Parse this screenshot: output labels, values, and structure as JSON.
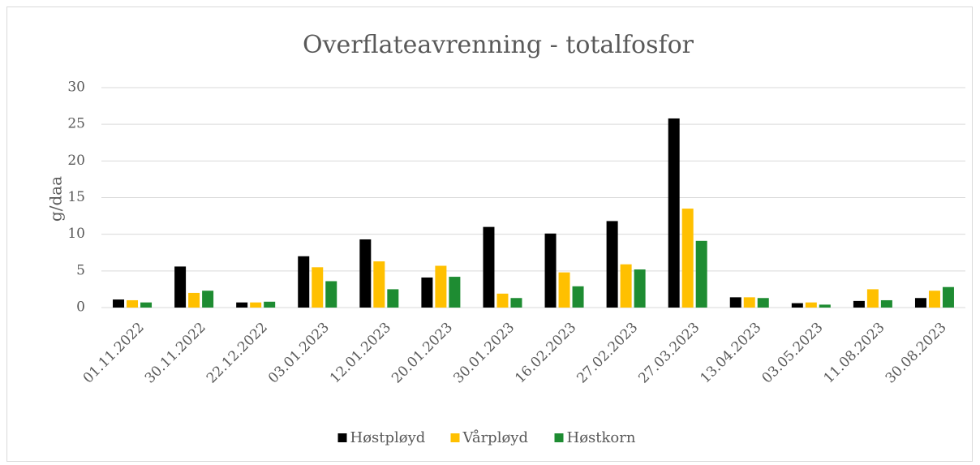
{
  "chart_data": {
    "type": "bar",
    "title": "Overflateavrenning - totalfosfor",
    "y_label": "g/daa",
    "categories": [
      "01.11.2022",
      "30.11.2022",
      "22.12.2022",
      "03.01.2023",
      "12.01.2023",
      "20.01.2023",
      "30.01.2023",
      "16.02.2023",
      "27.02.2023",
      "27.03.2023",
      "13.04.2023",
      "03.05.2023",
      "11.08.2023",
      "30.08.2023"
    ],
    "series": [
      {
        "name": "Høstpløyd",
        "color": "#000000",
        "values": [
          1.1,
          5.6,
          0.7,
          7.0,
          9.3,
          4.1,
          11.0,
          10.1,
          11.8,
          25.8,
          1.4,
          0.6,
          0.9,
          1.3
        ]
      },
      {
        "name": "Vårpløyd",
        "color": "#ffc000",
        "values": [
          1.0,
          2.0,
          0.7,
          5.5,
          6.3,
          5.7,
          1.9,
          4.8,
          5.9,
          13.5,
          1.4,
          0.7,
          2.5,
          2.3
        ]
      },
      {
        "name": "Høstkorn",
        "color": "#1e8c32",
        "values": [
          0.7,
          2.3,
          0.8,
          3.6,
          2.5,
          4.2,
          1.3,
          2.9,
          5.2,
          9.1,
          1.3,
          0.4,
          1.0,
          2.8
        ]
      }
    ],
    "ylim": [
      0,
      30
    ],
    "yticks": [
      0,
      5,
      10,
      15,
      20,
      25,
      30
    ],
    "grid": true,
    "legend": "bottom"
  }
}
